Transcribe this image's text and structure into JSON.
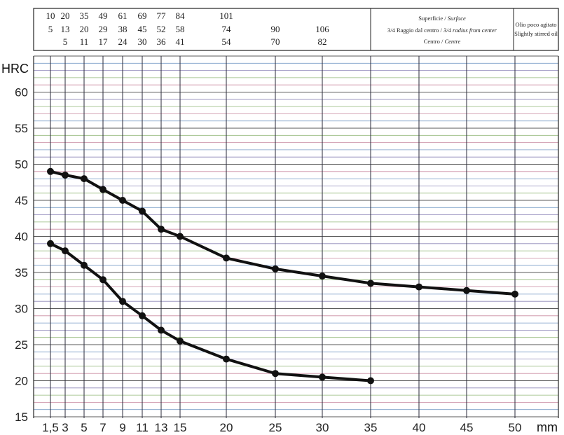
{
  "chart_data": {
    "type": "line",
    "ylabel": "HRC",
    "xlabel": "mm",
    "ylim": [
      15,
      65
    ],
    "yticks": [
      15,
      20,
      25,
      30,
      35,
      40,
      45,
      50,
      55,
      60
    ],
    "x_positions": [
      1.5,
      3,
      5,
      7,
      9,
      11,
      13,
      15,
      20,
      25,
      30,
      35,
      40,
      45,
      50
    ],
    "x_labels": [
      "1,5",
      "3",
      "5",
      "7",
      "9",
      "11",
      "13",
      "15",
      "20",
      "25",
      "30",
      "35",
      "40",
      "45",
      "50"
    ],
    "header_rows": [
      [
        {
          "x": 1.5,
          "text": "10"
        },
        {
          "x": 3,
          "text": "20"
        },
        {
          "x": 5,
          "text": "35"
        },
        {
          "x": 7,
          "text": "49"
        },
        {
          "x": 9,
          "text": "61"
        },
        {
          "x": 11,
          "text": "69"
        },
        {
          "x": 13,
          "text": "77"
        },
        {
          "x": 15,
          "text": "84"
        },
        {
          "x": 20,
          "text": "101"
        }
      ],
      [
        {
          "x": 1.5,
          "text": "5"
        },
        {
          "x": 3,
          "text": "13"
        },
        {
          "x": 5,
          "text": "20"
        },
        {
          "x": 7,
          "text": "29"
        },
        {
          "x": 9,
          "text": "38"
        },
        {
          "x": 11,
          "text": "45"
        },
        {
          "x": 13,
          "text": "52"
        },
        {
          "x": 15,
          "text": "58"
        },
        {
          "x": 20,
          "text": "74"
        },
        {
          "x": 25,
          "text": "90"
        },
        {
          "x": 30,
          "text": "106"
        }
      ],
      [
        {
          "x": 3,
          "text": "5"
        },
        {
          "x": 5,
          "text": "11"
        },
        {
          "x": 7,
          "text": "17"
        },
        {
          "x": 9,
          "text": "24"
        },
        {
          "x": 11,
          "text": "30"
        },
        {
          "x": 13,
          "text": "36"
        },
        {
          "x": 15,
          "text": "41"
        },
        {
          "x": 20,
          "text": "54"
        },
        {
          "x": 25,
          "text": "70"
        },
        {
          "x": 30,
          "text": "82"
        }
      ]
    ],
    "legend": {
      "line1_prefix": "Superficie / ",
      "line1_italic": "Surface",
      "line2_prefix": "3/4 Raggio dal centro / ",
      "line2_italic": "3/4 radius from center",
      "line3_prefix": "Centro / ",
      "line3_italic": "Centre",
      "medium_line1": "Olio poco agitato",
      "medium_line2": "Slightly stirred oil"
    },
    "series": [
      {
        "x": [
          1.5,
          3,
          5,
          7,
          9,
          11,
          13,
          15,
          20,
          25,
          30,
          35,
          40,
          45,
          50
        ],
        "values": [
          49,
          48.5,
          48,
          46.5,
          45,
          43.5,
          41,
          40,
          37,
          35.5,
          34.5,
          33.5,
          33,
          32.5,
          32
        ]
      },
      {
        "x": [
          1.5,
          3,
          5,
          7,
          9,
          11,
          13,
          15,
          20,
          25,
          30,
          35
        ],
        "values": [
          39,
          38,
          36,
          34,
          31,
          29,
          27,
          25.5,
          23,
          21,
          20.5,
          20
        ]
      }
    ],
    "colors": {
      "line": "#111111",
      "grid_vertical": "#2a2a3a",
      "grid_horizontal": [
        "#7a9ec7",
        "#c98aa0",
        "#93b87a",
        "#8e86b8",
        "#5a5a5a"
      ],
      "border": "#222222"
    }
  }
}
